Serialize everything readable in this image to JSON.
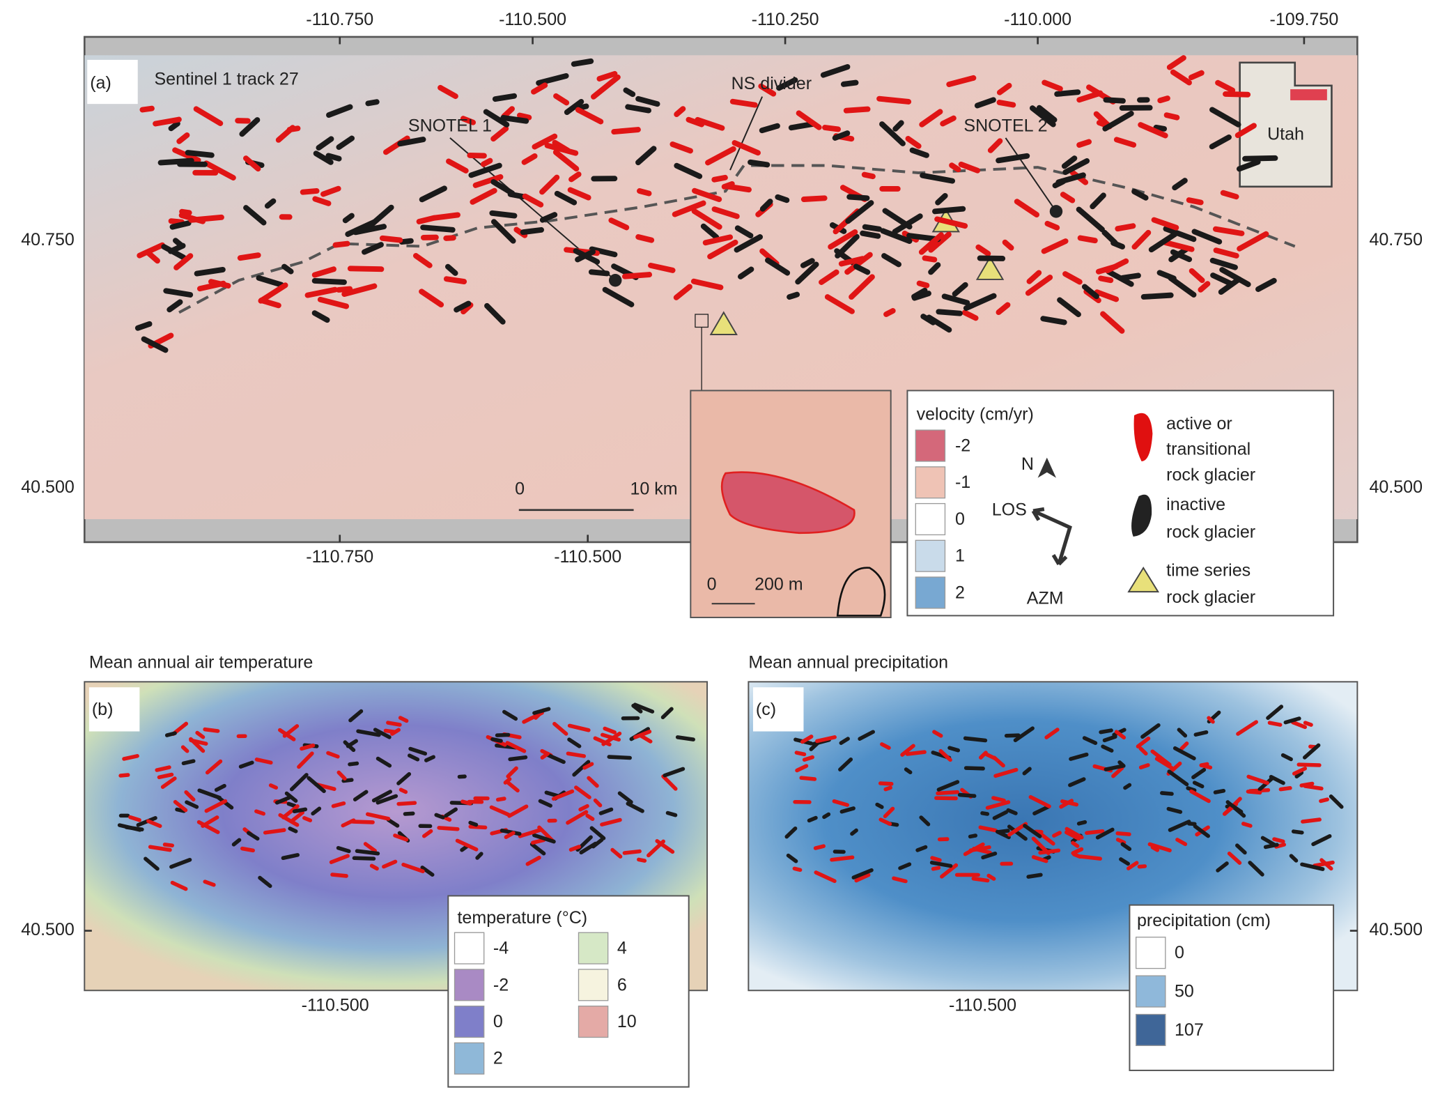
{
  "panel_a": {
    "label": "(a)",
    "subtitle": "Sentinel 1 track 27",
    "top_ticks": [
      "-110.750",
      "-110.500",
      "-110.250",
      "-110.000",
      "-109.750"
    ],
    "bottom_ticks": [
      "-110.750",
      "-110.500"
    ],
    "left_ticks": [
      "40.750",
      "40.500"
    ],
    "right_ticks": [
      "40.750",
      "40.500"
    ],
    "annotations": {
      "ns_divider": "NS divider",
      "snotel_1": "SNOTEL 1",
      "snotel_2": "SNOTEL 2"
    },
    "locator": "Utah",
    "scale_bar": [
      "0",
      "10 km"
    ],
    "zoom_scale_bar": [
      "0",
      "200 m"
    ],
    "legend": {
      "title": "velocity (cm/yr)",
      "classes": [
        "-2",
        "-1",
        "0",
        "1",
        "2"
      ],
      "north": "N",
      "los": "LOS",
      "azm": "AZM",
      "symbols": [
        [
          "active or",
          "transitional",
          "rock glacier"
        ],
        [
          "inactive",
          "rock glacier"
        ],
        [
          "time series",
          "rock glacier"
        ]
      ]
    }
  },
  "panel_b": {
    "title": "Mean annual air temperature",
    "label": "(b)",
    "left_ticks": [
      "40.500"
    ],
    "bottom_ticks": [
      "-110.500"
    ],
    "legend": {
      "title": "temperature (°C)",
      "classes": [
        "-4",
        "-2",
        "0",
        "2",
        "4",
        "6",
        "10"
      ]
    }
  },
  "panel_c": {
    "title": "Mean annual precipitation",
    "label": "(c)",
    "right_ticks": [
      "40.500"
    ],
    "bottom_ticks": [
      "-110.500"
    ],
    "legend": {
      "title": "precipitation (cm)",
      "classes": [
        "0",
        "50",
        "107"
      ]
    }
  }
}
